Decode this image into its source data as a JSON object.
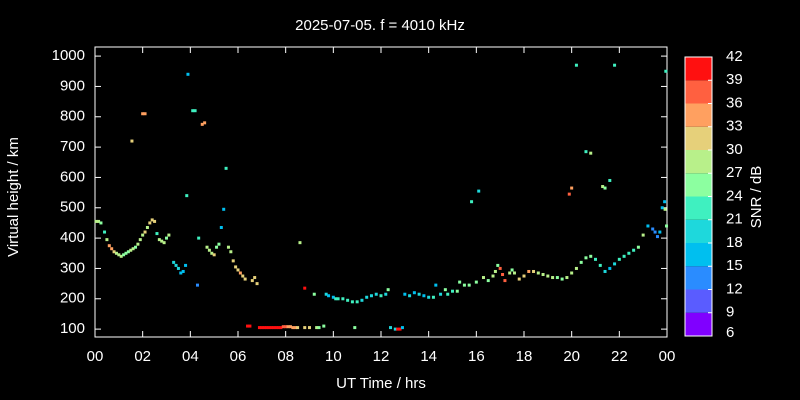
{
  "chart_data": {
    "type": "scatter",
    "title": "2025-07-05. f = 4010 kHz",
    "x_label": "UT Time / hrs",
    "y_label": "Virtual height / km",
    "xlim": [
      0,
      24
    ],
    "ylim": [
      74,
      1030
    ],
    "xticks": [
      {
        "value": 0,
        "label": "00"
      },
      {
        "value": 2,
        "label": "02"
      },
      {
        "value": 4,
        "label": "04"
      },
      {
        "value": 6,
        "label": "06"
      },
      {
        "value": 8,
        "label": "08"
      },
      10,
      12,
      14,
      16,
      18,
      20,
      22,
      {
        "value": 24,
        "label": "00"
      }
    ],
    "yticks": [
      100,
      200,
      300,
      400,
      500,
      600,
      700,
      800,
      900,
      1000
    ],
    "x": [
      0.05,
      0.15,
      0.25,
      0.4,
      0.5,
      0.6,
      0.7,
      0.8,
      0.9,
      1.0,
      1.1,
      1.2,
      1.3,
      1.4,
      1.5,
      1.6,
      1.7,
      1.8,
      1.9,
      2.0,
      2.1,
      2.2,
      2.3,
      2.4,
      2.5,
      2.6,
      2.7,
      2.8,
      2.9,
      3.0,
      3.1,
      3.3,
      3.4,
      3.5,
      3.6,
      3.7,
      3.8,
      1.55,
      2.0,
      2.1,
      3.85,
      3.9,
      4.1,
      4.2,
      4.5,
      4.6,
      4.35,
      4.3,
      4.7,
      4.8,
      4.9,
      5.0,
      5.1,
      5.2,
      5.3,
      5.4,
      5.5,
      5.6,
      5.7,
      5.8,
      5.9,
      6.0,
      6.1,
      6.2,
      6.3,
      6.6,
      6.7,
      6.8,
      6.4,
      6.5,
      6.9,
      7.0,
      7.1,
      7.2,
      7.3,
      7.4,
      7.5,
      7.6,
      7.7,
      7.8,
      7.9,
      8.0,
      8.1,
      8.2,
      8.3,
      8.4,
      8.5,
      8.6,
      8.8,
      8.8,
      9.0,
      9.2,
      9.3,
      9.4,
      9.6,
      9.7,
      9.8,
      10.0,
      10.1,
      10.2,
      10.4,
      10.6,
      10.8,
      10.9,
      11.0,
      11.2,
      11.4,
      11.6,
      11.8,
      12.0,
      12.2,
      12.3,
      12.4,
      12.6,
      12.7,
      12.8,
      12.9,
      13.0,
      13.2,
      13.4,
      13.6,
      13.8,
      14.0,
      14.2,
      14.3,
      14.5,
      14.7,
      14.8,
      15.0,
      15.2,
      15.3,
      15.5,
      15.7,
      15.8,
      16.0,
      16.1,
      16.3,
      16.5,
      16.7,
      16.8,
      16.9,
      17.0,
      17.1,
      17.2,
      17.4,
      17.5,
      17.6,
      17.8,
      18.0,
      18.2,
      18.4,
      18.6,
      18.8,
      19.0,
      19.2,
      19.4,
      19.6,
      19.8,
      20.0,
      20.2,
      20.4,
      20.6,
      20.8,
      21.0,
      21.2,
      21.4,
      19.9,
      20.0,
      20.2,
      20.6,
      20.8,
      21.3,
      21.4,
      21.6,
      21.8,
      21.6,
      21.8,
      22.0,
      22.2,
      22.4,
      22.6,
      22.8,
      23.0,
      23.2,
      23.4,
      23.5,
      23.6,
      23.7,
      23.8,
      23.9,
      23.95,
      23.92,
      23.98
    ],
    "values": [
      455,
      455,
      450,
      420,
      395,
      375,
      365,
      355,
      350,
      345,
      340,
      345,
      350,
      355,
      360,
      365,
      370,
      380,
      395,
      410,
      420,
      435,
      450,
      460,
      455,
      415,
      395,
      390,
      385,
      400,
      410,
      320,
      310,
      300,
      285,
      290,
      310,
      720,
      810,
      810,
      540,
      940,
      820,
      820,
      775,
      780,
      400,
      245,
      370,
      360,
      350,
      345,
      370,
      380,
      435,
      495,
      630,
      370,
      355,
      325,
      305,
      295,
      285,
      275,
      265,
      260,
      270,
      250,
      110,
      110,
      105,
      105,
      105,
      105,
      105,
      105,
      105,
      105,
      105,
      105,
      108,
      108,
      108,
      108,
      105,
      105,
      105,
      385,
      105,
      235,
      105,
      215,
      105,
      105,
      110,
      215,
      210,
      205,
      200,
      200,
      200,
      195,
      190,
      105,
      190,
      195,
      205,
      210,
      215,
      210,
      215,
      230,
      105,
      100,
      100,
      100,
      105,
      215,
      210,
      220,
      215,
      210,
      205,
      205,
      245,
      215,
      230,
      215,
      225,
      225,
      255,
      245,
      245,
      520,
      255,
      555,
      270,
      260,
      275,
      290,
      310,
      300,
      280,
      260,
      285,
      295,
      285,
      265,
      275,
      290,
      290,
      285,
      280,
      275,
      270,
      270,
      265,
      270,
      285,
      300,
      320,
      335,
      340,
      330,
      310,
      290,
      545,
      565,
      970,
      685,
      680,
      570,
      565,
      590,
      970,
      300,
      315,
      330,
      340,
      350,
      360,
      370,
      410,
      440,
      430,
      420,
      405,
      420,
      500,
      520,
      950,
      495,
      440
    ],
    "snr": [
      27,
      27,
      24,
      21,
      27,
      33,
      33,
      30,
      27,
      27,
      27,
      24,
      24,
      24,
      27,
      27,
      24,
      27,
      27,
      27,
      30,
      27,
      30,
      30,
      30,
      21,
      27,
      27,
      27,
      24,
      27,
      18,
      18,
      18,
      15,
      15,
      15,
      30,
      33,
      33,
      21,
      15,
      21,
      21,
      33,
      33,
      21,
      12,
      27,
      27,
      27,
      30,
      24,
      24,
      15,
      15,
      21,
      27,
      27,
      30,
      30,
      30,
      33,
      30,
      30,
      30,
      30,
      30,
      42,
      42,
      42,
      42,
      42,
      42,
      42,
      42,
      42,
      42,
      42,
      39,
      36,
      36,
      33,
      33,
      33,
      33,
      30,
      27,
      30,
      39,
      30,
      24,
      27,
      24,
      24,
      18,
      15,
      15,
      21,
      21,
      21,
      21,
      21,
      24,
      21,
      18,
      18,
      18,
      18,
      21,
      18,
      24,
      18,
      18,
      39,
      39,
      15,
      15,
      18,
      15,
      18,
      15,
      18,
      21,
      15,
      18,
      24,
      21,
      21,
      24,
      24,
      24,
      24,
      21,
      24,
      18,
      27,
      24,
      27,
      27,
      24,
      36,
      36,
      36,
      27,
      24,
      27,
      30,
      30,
      33,
      30,
      27,
      27,
      27,
      27,
      24,
      24,
      27,
      27,
      27,
      24,
      24,
      24,
      21,
      21,
      18,
      36,
      33,
      21,
      21,
      27,
      27,
      24,
      21,
      21,
      15,
      18,
      21,
      21,
      21,
      21,
      24,
      27,
      15,
      12,
      12,
      12,
      15,
      15,
      15,
      21,
      27,
      24
    ],
    "colorbar": {
      "label": "SNR / dB",
      "lim": [
        6,
        42
      ],
      "ticks": [
        6,
        9,
        12,
        15,
        18,
        21,
        24,
        27,
        30,
        33,
        36,
        39,
        42
      ],
      "colors": [
        "#8000ff",
        "#5a5cff",
        "#2a8cff",
        "#00bfef",
        "#1ed8dc",
        "#3ff0c0",
        "#8cffa0",
        "#b8f08a",
        "#e6d07a",
        "#ffa060",
        "#ff6040",
        "#ff1010"
      ]
    }
  }
}
